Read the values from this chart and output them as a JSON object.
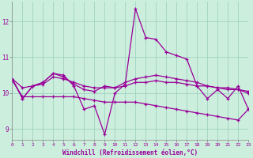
{
  "xlabel": "Windchill (Refroidissement éolien,°C)",
  "x": [
    0,
    1,
    2,
    3,
    4,
    5,
    6,
    7,
    8,
    9,
    10,
    11,
    12,
    13,
    14,
    15,
    16,
    17,
    18,
    19,
    20,
    21,
    22,
    23
  ],
  "line1": [
    10.4,
    9.85,
    10.2,
    10.3,
    10.55,
    10.5,
    10.2,
    9.55,
    9.65,
    8.85,
    10.0,
    10.25,
    12.35,
    11.55,
    11.5,
    11.15,
    11.05,
    10.95,
    10.2,
    9.85,
    10.1,
    9.85,
    10.2,
    9.55
  ],
  "line2": [
    10.4,
    9.85,
    10.2,
    10.3,
    10.55,
    10.45,
    10.25,
    10.1,
    10.05,
    10.2,
    10.15,
    10.3,
    10.4,
    10.45,
    10.5,
    10.45,
    10.4,
    10.35,
    10.3,
    10.2,
    10.15,
    10.1,
    10.1,
    10.05
  ],
  "line3": [
    10.4,
    10.15,
    10.2,
    10.25,
    10.45,
    10.4,
    10.3,
    10.2,
    10.15,
    10.15,
    10.15,
    10.2,
    10.3,
    10.3,
    10.35,
    10.3,
    10.3,
    10.25,
    10.2,
    10.2,
    10.15,
    10.15,
    10.1,
    10.0
  ],
  "line4": [
    10.35,
    9.9,
    9.9,
    9.9,
    9.9,
    9.9,
    9.9,
    9.85,
    9.8,
    9.75,
    9.75,
    9.75,
    9.75,
    9.7,
    9.65,
    9.6,
    9.55,
    9.5,
    9.45,
    9.4,
    9.35,
    9.3,
    9.25,
    9.55
  ],
  "bg_color": "#cceedd",
  "line_color": "#990099",
  "grid_color": "#99ccbb",
  "ylim": [
    8.7,
    12.55
  ],
  "yticks": [
    9,
    10,
    11,
    12
  ],
  "xlim": [
    0,
    23
  ]
}
